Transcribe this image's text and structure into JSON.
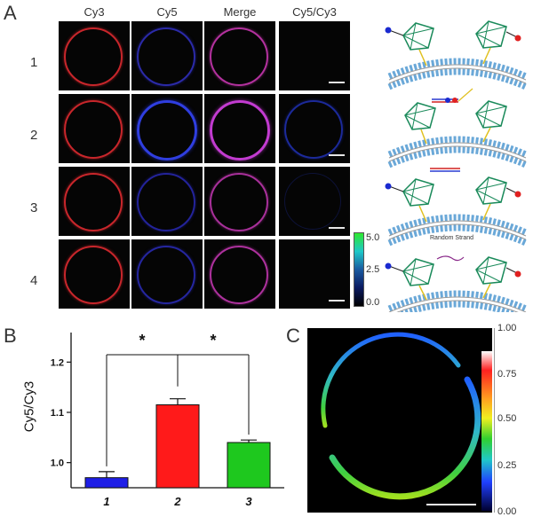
{
  "panels": {
    "a": "A",
    "b": "B",
    "c": "C"
  },
  "panel_a": {
    "columns": [
      "Cy3",
      "Cy5",
      "Merge",
      "Cy5/Cy3"
    ],
    "rows": [
      "1",
      "2",
      "3",
      "4"
    ],
    "colorbar_ticks": [
      "5.0",
      "2.5",
      "0.0"
    ],
    "cartoon_label": "Random Strand",
    "channel_colors": {
      "cy3": "#d0262b",
      "cy5": "#2a3ad0",
      "merge": "#c03ab8",
      "ratio": "#1a2a9a"
    }
  },
  "chart_data": {
    "type": "bar",
    "categories": [
      "1",
      "2",
      "3"
    ],
    "values": [
      0.97,
      1.115,
      1.04
    ],
    "errors": [
      0.012,
      0.012,
      0.005
    ],
    "colors": [
      "#1e1ee6",
      "#ff1a1a",
      "#1ec81e"
    ],
    "ylabel": "Cy5/Cy3",
    "y_ticks": [
      "1.0",
      "1.1",
      "1.2"
    ],
    "ylim": [
      0.95,
      1.25
    ],
    "significance": [
      "*",
      "*"
    ]
  },
  "panel_c": {
    "colorbar_ticks": [
      "1.00",
      "0.75",
      "0.50",
      "0.25",
      "0.00"
    ]
  }
}
